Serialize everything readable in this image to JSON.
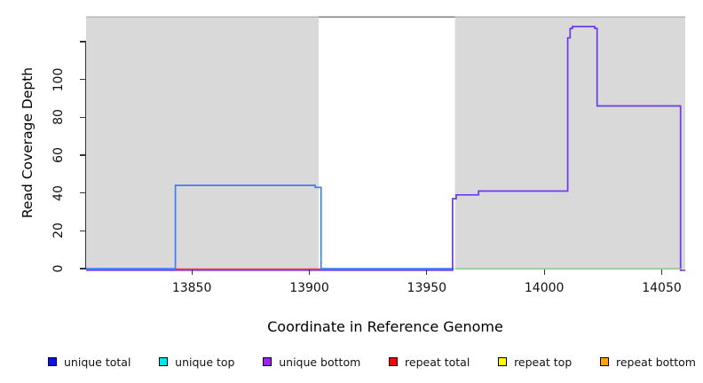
{
  "figure": {
    "y_axis_label": "Read Coverage Depth",
    "x_axis_label": "Coordinate in Reference Genome"
  },
  "legend": {
    "items": [
      {
        "label": "unique total",
        "color": "#0a10ee"
      },
      {
        "label": "unique top",
        "color": "#00e5ee"
      },
      {
        "label": "unique bottom",
        "color": "#a020f0"
      },
      {
        "label": "repeat total",
        "color": "#ff0000"
      },
      {
        "label": "repeat top",
        "color": "#ffff00"
      },
      {
        "label": "repeat bottom",
        "color": "#ffa500"
      }
    ]
  },
  "chart_data": {
    "type": "line",
    "step": true,
    "title": "",
    "xlabel": "Coordinate in Reference Genome",
    "ylabel": "Read Coverage Depth",
    "xlim": [
      13805,
      14060
    ],
    "ylim": [
      0,
      133
    ],
    "grid": false,
    "legend_position": "bottom",
    "x_ticks": [
      {
        "value": 13850,
        "label": "13850"
      },
      {
        "value": 13900,
        "label": "13900"
      },
      {
        "value": 13950,
        "label": "13950"
      },
      {
        "value": 14000,
        "label": "14000"
      },
      {
        "value": 14050,
        "label": "14050"
      }
    ],
    "y_ticks": [
      {
        "value": 0,
        "label": "0"
      },
      {
        "value": 20,
        "label": "20"
      },
      {
        "value": 40,
        "label": "40"
      },
      {
        "value": 60,
        "label": "60"
      },
      {
        "value": 80,
        "label": "80"
      },
      {
        "value": 100,
        "label": "100"
      },
      {
        "value": 120,
        "label": ""
      }
    ],
    "background_regions": [
      {
        "name": "shaded-region-left",
        "x0": 13805,
        "x1": 13904,
        "color": "#d9d9d9"
      },
      {
        "name": "gap-region-white",
        "x0": 13904,
        "x1": 13962,
        "color": "#ffffff"
      },
      {
        "name": "shaded-region-right",
        "x0": 13962,
        "x1": 14060,
        "color": "#d9d9d9"
      }
    ],
    "top_boundary_line": {
      "color_over_white": "#8a8a8a",
      "color_over_gray": "#b9b9b9"
    },
    "series": [
      {
        "id": "unique_total",
        "name": "unique total",
        "color": "#3d7cf5",
        "points": [
          [
            13805,
            0
          ],
          [
            13843,
            0
          ],
          [
            13843,
            44
          ],
          [
            13902.5,
            44
          ],
          [
            13902.5,
            43
          ],
          [
            13905,
            43
          ],
          [
            13905,
            0
          ],
          [
            13961.5,
            0
          ]
        ]
      },
      {
        "id": "unique_bottom",
        "name": "unique bottom",
        "color": "#6a3aec",
        "points": [
          [
            13805,
            0
          ],
          [
            13961,
            0
          ],
          [
            13961,
            37
          ],
          [
            13962.5,
            37
          ],
          [
            13962.5,
            39
          ],
          [
            13972,
            39
          ],
          [
            13972,
            41
          ],
          [
            14010,
            41
          ],
          [
            14010,
            122
          ],
          [
            14011,
            122
          ],
          [
            14011,
            127
          ],
          [
            14012,
            127
          ],
          [
            14012,
            128
          ],
          [
            14021.5,
            128
          ],
          [
            14021.5,
            127
          ],
          [
            14022.5,
            127
          ],
          [
            14022.5,
            86
          ],
          [
            14058,
            86
          ],
          [
            14058,
            0
          ],
          [
            14060,
            0
          ]
        ]
      },
      {
        "id": "repeat_total",
        "name": "repeat total",
        "color": "#e23b55",
        "points": [
          [
            13843,
            0
          ],
          [
            13905,
            0
          ]
        ]
      },
      {
        "id": "baseline_green",
        "name": "baseline green",
        "color": "#8ecc8e",
        "points": [
          [
            13962,
            0
          ],
          [
            14058,
            0
          ]
        ]
      }
    ]
  }
}
